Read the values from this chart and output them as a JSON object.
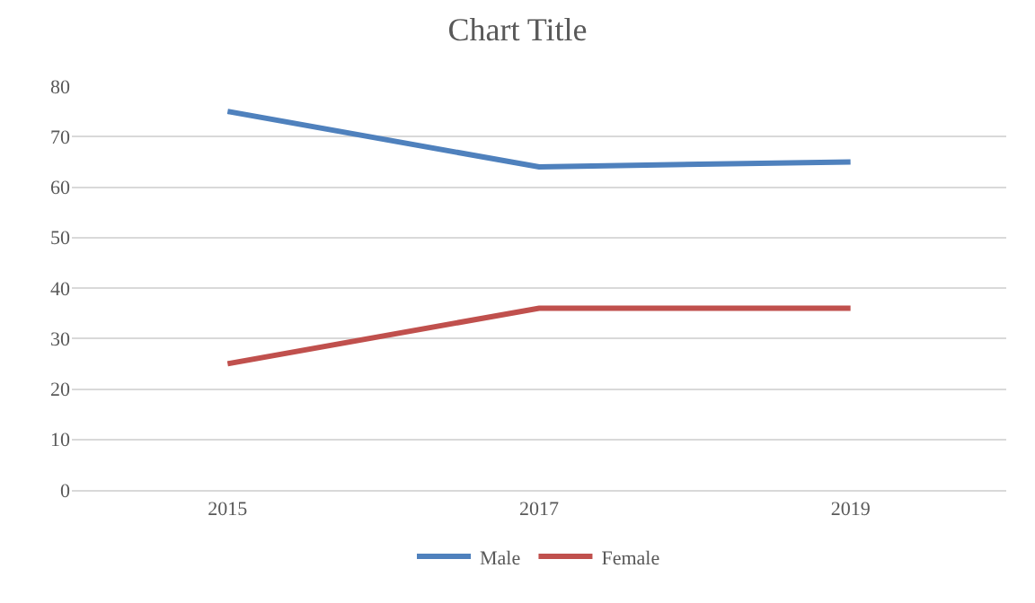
{
  "chart_data": {
    "type": "line",
    "title": "Chart Title",
    "categories": [
      "2015",
      "2017",
      "2019"
    ],
    "series": [
      {
        "name": "Male",
        "color": "#4f81bd",
        "values": [
          75,
          64,
          65
        ]
      },
      {
        "name": "Female",
        "color": "#c0504d",
        "values": [
          25,
          36,
          36
        ]
      }
    ],
    "ylim": [
      0,
      80
    ],
    "yticks": [
      0,
      10,
      20,
      30,
      40,
      50,
      60,
      70,
      80
    ],
    "grid": "y",
    "legend": "bottom",
    "marker": "none",
    "line_style": "solid"
  }
}
